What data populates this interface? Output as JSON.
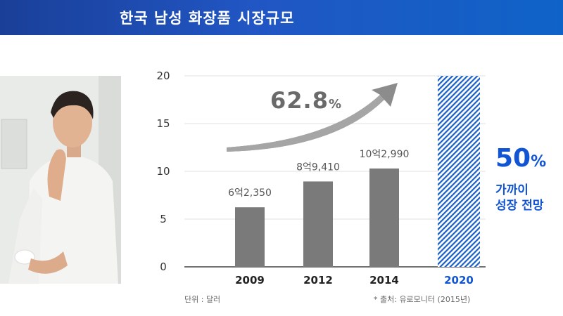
{
  "header": {
    "title": "한국 남성 화장품 시장규모"
  },
  "chart_data": {
    "type": "bar",
    "categories": [
      "2009",
      "2012",
      "2014",
      "2020"
    ],
    "values": [
      6.235,
      8.941,
      10.299,
      20
    ],
    "value_labels": [
      "6억2,350",
      "8억9,410",
      "10억2,990",
      ""
    ],
    "forecast_category": "2020",
    "ylim": [
      0,
      20
    ],
    "yticks": [
      0,
      5,
      10,
      15,
      20
    ],
    "grid": false,
    "colors": {
      "bar": "#7a7a7a",
      "forecast": "#1a5fc8",
      "forecast_label": "#1155d4"
    }
  },
  "annotations": {
    "growth_value": "62.8",
    "growth_unit": "%",
    "forecast_value": "50",
    "forecast_unit": "%",
    "forecast_line1": "가까이",
    "forecast_line2": "성장 전망"
  },
  "footer": {
    "unit": "단위 : 달러",
    "source": "* 출처: 유로모니터 (2015년)"
  }
}
